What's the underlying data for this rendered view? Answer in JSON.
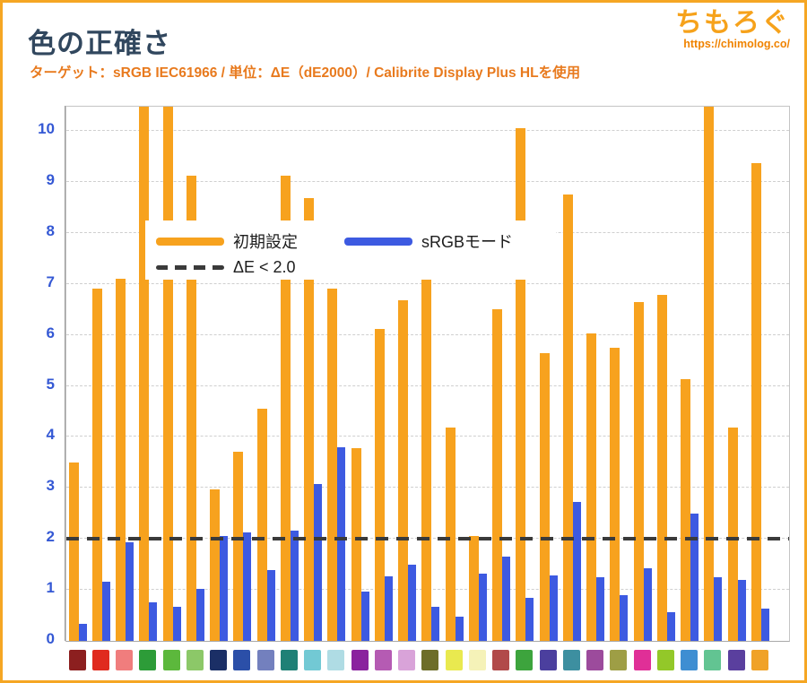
{
  "header": {
    "title": "色の正確さ",
    "subtitle": "ターゲット：sRGB IEC61966 / 単位：ΔE（dE2000）/ Calibrite Display Plus HLを使用",
    "logo_text": "ちもろぐ",
    "logo_url": "https://chimolog.co/"
  },
  "legend": {
    "default_label": "初期設定",
    "srgb_label": "sRGBモード",
    "threshold_label": "ΔE < 2.0"
  },
  "colors": {
    "default_series": "#F7A21E",
    "srgb_series": "#3D5AE1",
    "threshold_line": "#3A3A3A",
    "axis_label": "#3458D4",
    "title": "#31475E",
    "subtitle": "#E87A1E",
    "frame": "#F5A623",
    "gridline": "#CFCFCF"
  },
  "chart_data": {
    "type": "bar",
    "title": "色の正確さ",
    "ylabel": "ΔE (dE2000)",
    "ylim": [
      0,
      10.5
    ],
    "yticks": [
      0,
      1,
      2,
      3,
      4,
      5,
      6,
      7,
      8,
      9,
      10
    ],
    "threshold_value": 2.0,
    "grid": true,
    "legend_position": "top-left",
    "series_names": [
      "初期設定",
      "sRGBモード"
    ],
    "note": "groups 4, 5 and 28 default-setting bars exceed the axis maximum and are clipped at the plot top",
    "groups": [
      {
        "swatch": "#8C1F1F",
        "default": 3.5,
        "srgb": 0.33,
        "clipped": false
      },
      {
        "swatch": "#E02A1E",
        "default": 6.9,
        "srgb": 1.16,
        "clipped": false
      },
      {
        "swatch": "#F07D7D",
        "default": 7.1,
        "srgb": 1.94,
        "clipped": false
      },
      {
        "swatch": "#2D9C38",
        "default": 11.0,
        "srgb": 0.76,
        "clipped": true
      },
      {
        "swatch": "#5CB83C",
        "default": 11.0,
        "srgb": 0.67,
        "clipped": true
      },
      {
        "swatch": "#8CC868",
        "default": 9.12,
        "srgb": 1.02,
        "clipped": false
      },
      {
        "swatch": "#1B2F66",
        "default": 2.97,
        "srgb": 2.06,
        "clipped": false
      },
      {
        "swatch": "#2B4FA8",
        "default": 3.71,
        "srgb": 2.13,
        "clipped": false
      },
      {
        "swatch": "#7380BE",
        "default": 4.55,
        "srgb": 1.38,
        "clipped": false
      },
      {
        "swatch": "#1F8076",
        "default": 9.12,
        "srgb": 2.17,
        "clipped": false
      },
      {
        "swatch": "#72C9D4",
        "default": 8.68,
        "srgb": 3.08,
        "clipped": false
      },
      {
        "swatch": "#AFDCE4",
        "default": 6.9,
        "srgb": 3.8,
        "clipped": false
      },
      {
        "swatch": "#8A229E",
        "default": 3.78,
        "srgb": 0.96,
        "clipped": false
      },
      {
        "swatch": "#B55BB3",
        "default": 6.12,
        "srgb": 1.26,
        "clipped": false
      },
      {
        "swatch": "#D9A3D9",
        "default": 6.67,
        "srgb": 1.5,
        "clipped": false
      },
      {
        "swatch": "#6D6D28",
        "default": 8.12,
        "srgb": 0.67,
        "clipped": false
      },
      {
        "swatch": "#E9E94F",
        "default": 4.19,
        "srgb": 0.47,
        "clipped": false
      },
      {
        "swatch": "#F5F2B8",
        "default": 2.05,
        "srgb": 1.32,
        "clipped": false
      },
      {
        "swatch": "#B14A4A",
        "default": 6.51,
        "srgb": 1.65,
        "clipped": false
      },
      {
        "swatch": "#3DA43D",
        "default": 10.06,
        "srgb": 0.84,
        "clipped": false
      },
      {
        "swatch": "#4B3F9E",
        "default": 5.65,
        "srgb": 1.29,
        "clipped": false
      },
      {
        "swatch": "#3D8FA0",
        "default": 8.76,
        "srgb": 2.72,
        "clipped": false
      },
      {
        "swatch": "#9C4B9C",
        "default": 6.03,
        "srgb": 1.25,
        "clipped": false
      },
      {
        "swatch": "#9E9E45",
        "default": 5.75,
        "srgb": 0.9,
        "clipped": false
      },
      {
        "swatch": "#E02F97",
        "default": 6.65,
        "srgb": 1.43,
        "clipped": false
      },
      {
        "swatch": "#93C829",
        "default": 6.78,
        "srgb": 0.56,
        "clipped": false
      },
      {
        "swatch": "#3E8ED2",
        "default": 5.14,
        "srgb": 2.5,
        "clipped": false
      },
      {
        "swatch": "#62C492",
        "default": 11.0,
        "srgb": 1.25,
        "clipped": true
      },
      {
        "swatch": "#5A3F9E",
        "default": 4.19,
        "srgb": 1.2,
        "clipped": false
      },
      {
        "swatch": "#F0A228",
        "default": 9.37,
        "srgb": 0.64,
        "clipped": false
      }
    ]
  }
}
